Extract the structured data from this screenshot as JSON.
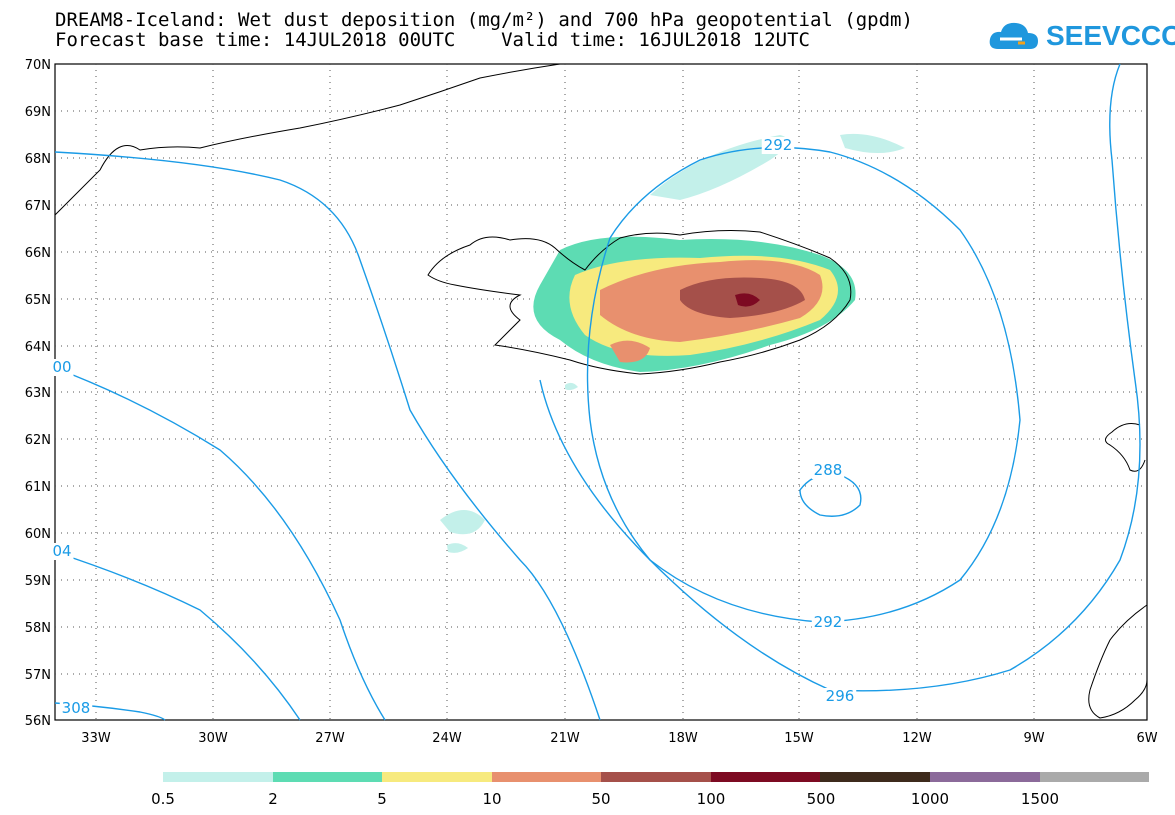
{
  "header": {
    "title_line1": "DREAM8-Iceland: Wet dust deposition (mg/m²) and 700 hPa geopotential (gpdm)",
    "title_line2": "Forecast base time: 14JUL2018 00UTC    Valid time: 16JUL2018 12UTC"
  },
  "logo": {
    "text": "SEEVCCC",
    "icon": "cloud-icon",
    "color": "#1f97dd"
  },
  "map": {
    "lat_labels": [
      "70N",
      "69N",
      "68N",
      "67N",
      "66N",
      "65N",
      "64N",
      "63N",
      "62N",
      "61N",
      "60N",
      "59N",
      "58N",
      "57N",
      "56N"
    ],
    "lon_labels": [
      "33W",
      "30W",
      "27W",
      "24W",
      "21W",
      "18W",
      "15W",
      "12W",
      "9W",
      "6W"
    ],
    "contour_labels": [
      "292",
      "288",
      "292",
      "296",
      "00",
      "04",
      "308"
    ],
    "contour_color": "#1a9be6"
  },
  "legend": {
    "labels": [
      "0.5",
      "2",
      "5",
      "10",
      "50",
      "100",
      "500",
      "1000",
      "1500"
    ],
    "colors": [
      "#c3f0ea",
      "#5ddcb3",
      "#f7ea7e",
      "#e8906e",
      "#a5504a",
      "#7d0a22",
      "#3e2a1c",
      "#8b6a9a",
      "#aaaaaa"
    ]
  }
}
